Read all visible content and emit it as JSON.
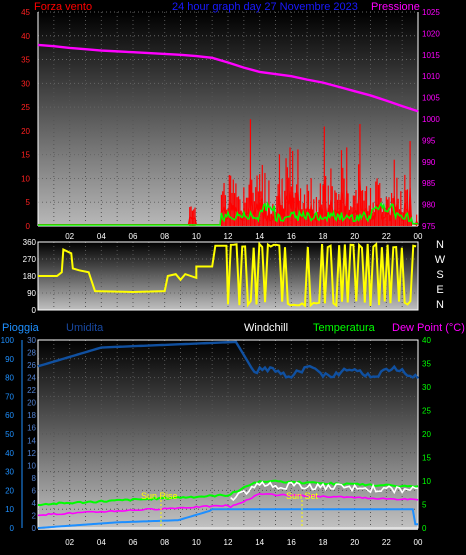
{
  "header": {
    "left_label": "Forza vento",
    "title": "24 hour graph day 27 Novembre 2023",
    "right_label": "Pressione"
  },
  "bottom_labels": {
    "rain": "Pioggia",
    "humidity": "Umidita",
    "windchill": "Windchill",
    "temperature": "Temperatura",
    "dewpoint": "Dew Point (°C)"
  },
  "annotations": {
    "sunrise": "Sun Rise",
    "sunset": "Sun Set"
  },
  "colors": {
    "wind": "#ff0000",
    "gust": "#ff0000",
    "avg_wind": "#00ff00",
    "pressure": "#ff00ff",
    "direction": "#ffff00",
    "temperature": "#00ff00",
    "dewpoint": "#ff00ff",
    "windchill": "#ffffff",
    "humidity": "#1050a0",
    "rain": "#0080ff"
  },
  "chart_data": [
    {
      "type": "line",
      "panel": "wind-pressure",
      "x_ticks": [
        "02",
        "04",
        "06",
        "08",
        "10",
        "12",
        "14",
        "16",
        "18",
        "20",
        "22",
        "00"
      ],
      "ylabel_left": "Forza vento",
      "ylabel_right": "Pressione",
      "ylim_left": [
        0,
        45
      ],
      "yticks_left": [
        0,
        5,
        10,
        15,
        20,
        25,
        30,
        35,
        40,
        45
      ],
      "ylim_right": [
        975,
        1025
      ],
      "yticks_right": [
        975,
        980,
        985,
        990,
        995,
        1000,
        1005,
        1010,
        1015,
        1020,
        1025
      ],
      "series": [
        {
          "name": "Pressione",
          "axis": "right",
          "x": [
            0,
            1,
            2,
            3,
            4,
            5,
            6,
            7,
            8,
            9,
            10,
            11,
            12,
            13,
            14,
            15,
            16,
            17,
            18,
            19,
            20,
            21,
            22,
            23,
            24
          ],
          "values": [
            1017.3,
            1017,
            1016.6,
            1016.3,
            1016,
            1015.8,
            1015.6,
            1015.4,
            1015.2,
            1015,
            1014.7,
            1014.3,
            1013.2,
            1012,
            1011,
            1010.5,
            1010,
            1009.2,
            1008.5,
            1007.5,
            1006.5,
            1005.5,
            1004.3,
            1003,
            1001.8
          ]
        }
      ]
    },
    {
      "type": "line",
      "panel": "wind-direction",
      "ylim": [
        0,
        360
      ],
      "yticks": [
        0,
        90,
        180,
        270,
        360
      ],
      "compass": [
        "N",
        "W",
        "S",
        "E",
        "N"
      ]
    },
    {
      "type": "line",
      "panel": "temperature-humidity-rain",
      "x_ticks": [
        "02",
        "04",
        "06",
        "08",
        "10",
        "12",
        "14",
        "16",
        "18",
        "20",
        "22",
        "00"
      ],
      "yticks_rain": [
        0,
        10,
        20,
        30,
        40,
        50,
        60,
        70,
        80,
        90,
        100
      ],
      "yticks_humidity": [
        0,
        2,
        4,
        6,
        8,
        10,
        12,
        14,
        16,
        18,
        20,
        22,
        24,
        26,
        28,
        30
      ],
      "ylim_right": [
        0,
        40
      ],
      "yticks_right": [
        0,
        5,
        10,
        15,
        20,
        25,
        30,
        35,
        40
      ]
    }
  ]
}
